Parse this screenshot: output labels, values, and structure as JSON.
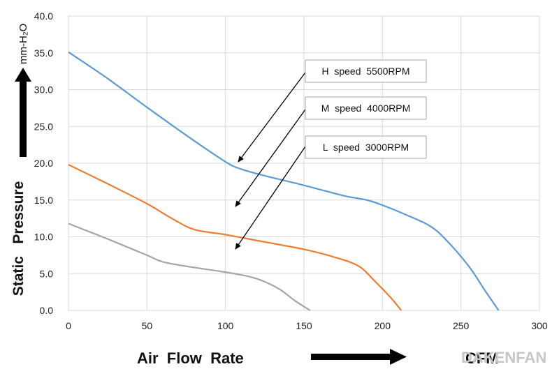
{
  "chart_data": {
    "type": "line",
    "xlabel": "Air  Flow  Rate",
    "x_unit": "CFM",
    "ylabel": "Static   Pressure",
    "y_unit": "mm-H₂O",
    "xlim": [
      0,
      300
    ],
    "ylim": [
      0,
      40
    ],
    "x_ticks": [
      0,
      50,
      100,
      150,
      200,
      250,
      300
    ],
    "y_ticks": [
      0,
      5,
      10,
      15,
      20,
      25,
      30,
      35,
      40
    ],
    "x_tick_labels": [
      "0",
      "50",
      "100",
      "150",
      "200",
      "250",
      "300"
    ],
    "y_tick_labels": [
      "0.0",
      "5.0",
      "10.0",
      "15.0",
      "20.0",
      "25.0",
      "30.0",
      "35.0",
      "40.0"
    ],
    "grid": true,
    "legend_position": "top-center",
    "series": [
      {
        "name": "H  speed  5500RPM",
        "color": "#5B9BD5",
        "points": [
          [
            0,
            35.1
          ],
          [
            25,
            31.5
          ],
          [
            50,
            27.6
          ],
          [
            75,
            23.8
          ],
          [
            100,
            20.2
          ],
          [
            110,
            19.2
          ],
          [
            125,
            18.3
          ],
          [
            150,
            17.0
          ],
          [
            175,
            15.6
          ],
          [
            190,
            15.0
          ],
          [
            200,
            14.3
          ],
          [
            215,
            13.0
          ],
          [
            230,
            11.5
          ],
          [
            240,
            9.7
          ],
          [
            255,
            6.0
          ],
          [
            265,
            2.8
          ],
          [
            274,
            0
          ]
        ]
      },
      {
        "name": "M  speed  4000RPM",
        "color": "#ED7D31",
        "points": [
          [
            0,
            19.8
          ],
          [
            25,
            17.2
          ],
          [
            50,
            14.5
          ],
          [
            65,
            12.6
          ],
          [
            80,
            11.0
          ],
          [
            100,
            10.3
          ],
          [
            125,
            9.3
          ],
          [
            150,
            8.3
          ],
          [
            170,
            7.2
          ],
          [
            185,
            6.0
          ],
          [
            195,
            4.0
          ],
          [
            205,
            1.8
          ],
          [
            212,
            0
          ]
        ]
      },
      {
        "name": "L  speed  3000RPM",
        "color": "#A5A5A5",
        "points": [
          [
            0,
            11.8
          ],
          [
            25,
            9.7
          ],
          [
            50,
            7.5
          ],
          [
            60,
            6.6
          ],
          [
            75,
            6.0
          ],
          [
            100,
            5.2
          ],
          [
            115,
            4.6
          ],
          [
            125,
            3.9
          ],
          [
            135,
            2.8
          ],
          [
            145,
            1.2
          ],
          [
            154,
            0
          ]
        ]
      }
    ]
  },
  "watermark": "DAKENFAN"
}
